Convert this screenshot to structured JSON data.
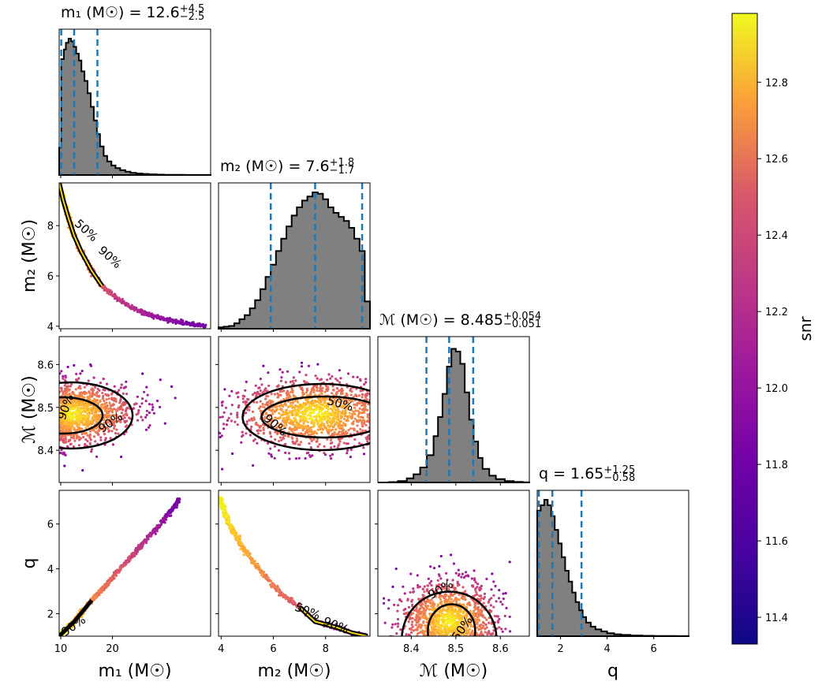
{
  "chart_data": {
    "type": "corner",
    "parameters": [
      {
        "key": "m1",
        "axis_label": "m₁ (M☉)",
        "tick_labels": [
          "10",
          "20"
        ],
        "ticks": [
          10,
          20
        ],
        "range": [
          9.7,
          39.0
        ]
      },
      {
        "key": "m2",
        "axis_label": "m₂ (M☉)",
        "tick_labels": [
          "4",
          "6",
          "8"
        ],
        "ticks": [
          4,
          6,
          8
        ],
        "range": [
          3.9,
          9.7
        ]
      },
      {
        "key": "mc",
        "axis_label": "ℳ (M☉)",
        "tick_labels": [
          "8.4",
          "8.5",
          "8.6"
        ],
        "ticks": [
          8.4,
          8.5,
          8.6
        ],
        "range": [
          8.325,
          8.665
        ]
      },
      {
        "key": "q",
        "axis_label": "q",
        "tick_labels": [
          "2",
          "4",
          "6"
        ],
        "ticks": [
          2,
          4,
          6
        ],
        "range": [
          1.0,
          7.5
        ]
      }
    ],
    "titles": [
      {
        "param": "m1",
        "text": "m₁ (M☉) = 12.6",
        "sup": "+4.5",
        "sub": "−2.5"
      },
      {
        "param": "m2",
        "text": "m₂ (M☉) = 7.6",
        "sup": "+1.8",
        "sub": "−1.7"
      },
      {
        "param": "mc",
        "text": "ℳ (M☉) = 8.485",
        "sup": "+0.054",
        "sub": "−0.051"
      },
      {
        "param": "q",
        "text": "q = 1.65",
        "sup": "+1.25",
        "sub": "−0.58"
      }
    ],
    "quantile_lines": {
      "m1": [
        10.1,
        12.6,
        17.1
      ],
      "m2": [
        5.9,
        7.6,
        9.4
      ],
      "mc": [
        8.434,
        8.485,
        8.539
      ],
      "q": [
        1.07,
        1.65,
        2.9
      ]
    },
    "histograms": {
      "m1": [
        [
          9.7,
          0.2
        ],
        [
          10.1,
          0.85
        ],
        [
          10.6,
          0.92
        ],
        [
          11.0,
          0.97
        ],
        [
          11.5,
          1.0
        ],
        [
          12.0,
          0.98
        ],
        [
          12.5,
          0.94
        ],
        [
          13.0,
          0.89
        ],
        [
          13.5,
          0.84
        ],
        [
          14.0,
          0.76
        ],
        [
          14.6,
          0.69
        ],
        [
          15.2,
          0.6
        ],
        [
          15.8,
          0.5
        ],
        [
          16.4,
          0.4
        ],
        [
          17.0,
          0.3
        ],
        [
          17.6,
          0.21
        ],
        [
          18.3,
          0.14
        ],
        [
          19.0,
          0.1
        ],
        [
          19.8,
          0.07
        ],
        [
          20.6,
          0.05
        ],
        [
          21.5,
          0.035
        ],
        [
          22.5,
          0.025
        ],
        [
          23.5,
          0.016
        ],
        [
          24.6,
          0.011
        ],
        [
          25.8,
          0.008
        ],
        [
          27.0,
          0.005
        ],
        [
          28.5,
          0.003
        ],
        [
          30.0,
          0.002
        ],
        [
          32.0,
          0.001
        ],
        [
          34.0,
          0.0008
        ],
        [
          36.0,
          0.0005
        ],
        [
          38.0,
          0.0003
        ]
      ],
      "m2": [
        [
          3.9,
          0.01
        ],
        [
          4.1,
          0.015
        ],
        [
          4.3,
          0.02
        ],
        [
          4.5,
          0.04
        ],
        [
          4.7,
          0.07
        ],
        [
          4.9,
          0.1
        ],
        [
          5.1,
          0.15
        ],
        [
          5.3,
          0.21
        ],
        [
          5.5,
          0.29
        ],
        [
          5.7,
          0.38
        ],
        [
          5.9,
          0.47
        ],
        [
          6.1,
          0.57
        ],
        [
          6.3,
          0.66
        ],
        [
          6.5,
          0.75
        ],
        [
          6.7,
          0.83
        ],
        [
          6.9,
          0.89
        ],
        [
          7.1,
          0.94
        ],
        [
          7.3,
          0.97
        ],
        [
          7.5,
          1.0
        ],
        [
          7.7,
          0.99
        ],
        [
          7.9,
          0.95
        ],
        [
          8.1,
          0.89
        ],
        [
          8.3,
          0.85
        ],
        [
          8.5,
          0.82
        ],
        [
          8.7,
          0.79
        ],
        [
          8.9,
          0.74
        ],
        [
          9.1,
          0.66
        ],
        [
          9.3,
          0.57
        ],
        [
          9.5,
          0.2
        ]
      ],
      "mc": [
        [
          8.325,
          0.0
        ],
        [
          8.35,
          0.003
        ],
        [
          8.37,
          0.01
        ],
        [
          8.39,
          0.03
        ],
        [
          8.405,
          0.06
        ],
        [
          8.42,
          0.11
        ],
        [
          8.435,
          0.2
        ],
        [
          8.45,
          0.34
        ],
        [
          8.46,
          0.48
        ],
        [
          8.47,
          0.65
        ],
        [
          8.48,
          0.85
        ],
        [
          8.49,
          0.98
        ],
        [
          8.5,
          0.96
        ],
        [
          8.51,
          0.87
        ],
        [
          8.52,
          0.66
        ],
        [
          8.53,
          0.46
        ],
        [
          8.54,
          0.3
        ],
        [
          8.55,
          0.18
        ],
        [
          8.56,
          0.1
        ],
        [
          8.575,
          0.05
        ],
        [
          8.59,
          0.025
        ],
        [
          8.61,
          0.01
        ],
        [
          8.63,
          0.004
        ],
        [
          8.65,
          0.001
        ]
      ],
      "q": [
        [
          1.0,
          0.92
        ],
        [
          1.15,
          0.96
        ],
        [
          1.3,
          1.0
        ],
        [
          1.45,
          0.96
        ],
        [
          1.6,
          0.88
        ],
        [
          1.75,
          0.78
        ],
        [
          1.9,
          0.68
        ],
        [
          2.05,
          0.58
        ],
        [
          2.2,
          0.48
        ],
        [
          2.35,
          0.4
        ],
        [
          2.5,
          0.32
        ],
        [
          2.65,
          0.25
        ],
        [
          2.8,
          0.19
        ],
        [
          2.95,
          0.14
        ],
        [
          3.1,
          0.1
        ],
        [
          3.3,
          0.07
        ],
        [
          3.5,
          0.05
        ],
        [
          3.75,
          0.035
        ],
        [
          4.0,
          0.022
        ],
        [
          4.3,
          0.014
        ],
        [
          4.6,
          0.009
        ],
        [
          5.0,
          0.005
        ],
        [
          5.5,
          0.003
        ],
        [
          6.0,
          0.002
        ],
        [
          6.5,
          0.001
        ],
        [
          7.0,
          0.0005
        ]
      ]
    },
    "scatter_description": {
      "m1_m2": {
        "curve": [
          [
            9.7,
            9.7
          ],
          [
            10.5,
            9.0
          ],
          [
            11.5,
            8.3
          ],
          [
            12.6,
            7.6
          ],
          [
            14.0,
            6.95
          ],
          [
            16.0,
            6.2
          ],
          [
            18.0,
            5.6
          ],
          [
            20.0,
            5.25
          ],
          [
            24.0,
            4.7
          ],
          [
            28.0,
            4.4
          ],
          [
            33.0,
            4.15
          ],
          [
            38.0,
            4.0
          ]
        ]
      },
      "m1_mc": {
        "center": [
          12.0,
          8.485
        ]
      },
      "m1_q": {
        "curve": [
          [
            9.7,
            1.0
          ],
          [
            12.6,
            1.65
          ],
          [
            16.0,
            2.6
          ],
          [
            20.0,
            3.6
          ],
          [
            25.0,
            4.9
          ],
          [
            30.0,
            6.2
          ],
          [
            33.0,
            7.1
          ]
        ]
      },
      "m2_mc": {
        "center": [
          7.6,
          8.485
        ]
      },
      "m2_q": {
        "curve": [
          [
            3.95,
            7.1
          ],
          [
            4.3,
            6.0
          ],
          [
            4.8,
            5.0
          ],
          [
            5.5,
            3.9
          ],
          [
            6.3,
            2.9
          ],
          [
            7.0,
            2.3
          ],
          [
            7.6,
            1.65
          ],
          [
            8.4,
            1.4
          ],
          [
            9.0,
            1.15
          ],
          [
            9.6,
            1.0
          ]
        ]
      },
      "mc_q": {
        "center": [
          8.485,
          1.65
        ]
      }
    },
    "contour_labels": [
      "50%",
      "90%"
    ],
    "colorbar": {
      "label": "snr",
      "range": [
        11.33,
        12.98
      ],
      "ticks": [
        11.4,
        11.6,
        11.8,
        12.0,
        12.2,
        12.4,
        12.6,
        12.8
      ],
      "tick_labels": [
        "11.4",
        "11.6",
        "11.8",
        "12.0",
        "12.2",
        "12.4",
        "12.6",
        "12.8"
      ],
      "colormap": "plasma"
    },
    "colors": {
      "hist_fill": "#808080",
      "quantile_line": "#1f77b4",
      "contour": "#000000"
    }
  }
}
